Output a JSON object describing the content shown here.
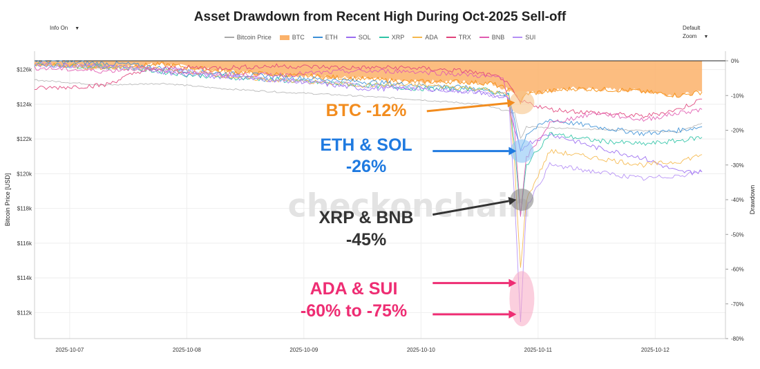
{
  "title": "Asset Drawdown from Recent High During Oct-2025 Sell-off",
  "controls": {
    "info_select": "Info On",
    "zoom_select": "Default Zoom",
    "caret": "▼"
  },
  "watermark": "checkonchain",
  "colors": {
    "bitcoin_price": "#a8a8a8",
    "btc": "#f7931a",
    "eth": "#3b8fd6",
    "sol": "#9a6cf0",
    "xrp": "#2ec4a6",
    "ada": "#f5b84c",
    "trx": "#e0427a",
    "bnb": "#e05ab0",
    "sui": "#b48ef5",
    "btc_fill": "#fbb26a",
    "grid": "#eeeeee",
    "axis_text": "#333333",
    "ann_orange": "#f28c1e",
    "ann_blue": "#1f7ae0",
    "ann_dark": "#333333",
    "ann_pink": "#ee2d73",
    "bubble_orange": "#f7c48a",
    "bubble_blue": "#8cc4f5",
    "bubble_dark": "#888888",
    "bubble_pink": "#f7a8c2"
  },
  "chart_data": {
    "type": "line",
    "title": "Asset Drawdown from Recent High During Oct-2025 Sell-off",
    "ylabel": "Bitcoin Price [USD]",
    "y2label": "Drawdown",
    "ylim": [
      110500,
      126500
    ],
    "y2lim": [
      -80,
      0
    ],
    "yticks": [
      126000,
      124000,
      122000,
      120000,
      118000,
      116000,
      114000,
      112000
    ],
    "ytick_labels": [
      "$126k",
      "$124k",
      "$122k",
      "$120k",
      "$118k",
      "$116k",
      "$114k",
      "$112k"
    ],
    "y2ticks": [
      0,
      -10,
      -20,
      -30,
      -40,
      -50,
      -60,
      -70,
      -80
    ],
    "y2tick_labels": [
      "0%",
      "-10%",
      "-20%",
      "-30%",
      "-40%",
      "-50%",
      "-60%",
      "-70%",
      "-80%"
    ],
    "xlim": [
      -0.3,
      5.6
    ],
    "xticks": [
      0,
      1,
      2,
      3,
      4,
      5
    ],
    "xtick_labels": [
      "2025-10-07",
      "2025-10-08",
      "2025-10-09",
      "2025-10-10",
      "2025-10-11",
      "2025-10-12"
    ],
    "legend": [
      "Bitcoin Price",
      "BTC",
      "ETH",
      "SOL",
      "XRP",
      "ADA",
      "TRX",
      "BNB",
      "SUI"
    ],
    "legend_position": "top-center",
    "crash_day": 3.85,
    "series": [
      {
        "name": "Bitcoin Price",
        "axis": "price",
        "color_key": "bitcoin_price",
        "x": [
          -0.3,
          0.3,
          0.8,
          1.3,
          1.8,
          2.4,
          2.9,
          3.5,
          3.8,
          3.85,
          3.9,
          4.3,
          4.8,
          5.2,
          5.4
        ],
        "y": [
          125400,
          125100,
          125200,
          124900,
          124700,
          124500,
          124300,
          124000,
          123500,
          122000,
          122700,
          122600,
          122500,
          122400,
          122900
        ]
      },
      {
        "name": "BTC",
        "axis": "drawdown",
        "color_key": "btc",
        "fill": true,
        "x": [
          -0.3,
          0.3,
          0.5,
          0.8,
          1.3,
          1.8,
          2.4,
          2.9,
          3.3,
          3.6,
          3.8,
          3.85,
          3.9,
          4.3,
          4.8,
          5.2,
          5.4
        ],
        "y": [
          -1,
          -2,
          -1.5,
          -1,
          -3,
          -4,
          -5,
          -6,
          -6,
          -6.5,
          -9,
          -12,
          -9.5,
          -8,
          -8.5,
          -10,
          -9
        ]
      },
      {
        "name": "ETH",
        "axis": "drawdown",
        "color_key": "eth",
        "x": [
          -0.3,
          0.5,
          1.0,
          1.5,
          2.0,
          2.5,
          3.0,
          3.5,
          3.75,
          3.8,
          3.85,
          3.9,
          4.1,
          4.5,
          4.9,
          5.2,
          5.4
        ],
        "y": [
          0,
          -1,
          -3,
          -4,
          -5,
          -6,
          -7,
          -8,
          -10,
          -17,
          -26,
          -21,
          -17,
          -19,
          -21,
          -20,
          -19
        ]
      },
      {
        "name": "SOL",
        "axis": "drawdown",
        "color_key": "sol",
        "x": [
          -0.3,
          0.5,
          1.0,
          1.5,
          2.0,
          2.5,
          3.0,
          3.5,
          3.75,
          3.8,
          3.85,
          3.9,
          4.1,
          4.5,
          4.9,
          5.2,
          5.4
        ],
        "y": [
          -1,
          -2,
          -4,
          -5,
          -6,
          -8,
          -8,
          -9,
          -11,
          -20,
          -26,
          -24,
          -21,
          -25,
          -28,
          -32,
          -32
        ]
      },
      {
        "name": "XRP",
        "axis": "drawdown",
        "color_key": "xrp",
        "x": [
          -0.3,
          0.5,
          1.0,
          1.5,
          2.0,
          2.5,
          3.0,
          3.5,
          3.75,
          3.8,
          3.85,
          3.9,
          4.1,
          4.5,
          4.9,
          5.2,
          5.4
        ],
        "y": [
          -1,
          -2,
          -4,
          -5,
          -6,
          -7,
          -8,
          -8,
          -10,
          -25,
          -45,
          -30,
          -21,
          -23,
          -24,
          -23,
          -22
        ]
      },
      {
        "name": "ADA",
        "axis": "drawdown",
        "color_key": "ada",
        "x": [
          -0.3,
          0.5,
          1.0,
          1.5,
          2.0,
          2.5,
          3.0,
          3.5,
          3.75,
          3.8,
          3.85,
          3.9,
          4.1,
          4.5,
          4.9,
          5.2,
          5.4
        ],
        "y": [
          -1,
          -2,
          -3,
          -5,
          -6,
          -7,
          -7,
          -8,
          -10,
          -30,
          -60,
          -40,
          -26,
          -28,
          -30,
          -29,
          -27
        ]
      },
      {
        "name": "TRX",
        "axis": "drawdown",
        "color_key": "trx",
        "x": [
          -0.3,
          0.3,
          0.6,
          0.9,
          1.3,
          1.8,
          2.4,
          2.9,
          3.4,
          3.7,
          3.85,
          3.9,
          4.1,
          4.5,
          4.9,
          5.2,
          5.4
        ],
        "y": [
          -8,
          -7,
          -3,
          -2,
          -2,
          -1.5,
          -2,
          -2,
          -3,
          -5,
          -12,
          -12,
          -14,
          -15,
          -16,
          -14,
          -11
        ]
      },
      {
        "name": "BNB",
        "axis": "drawdown",
        "color_key": "bnb",
        "x": [
          -0.3,
          0.3,
          0.6,
          0.9,
          1.3,
          1.8,
          2.4,
          2.9,
          3.4,
          3.7,
          3.8,
          3.85,
          3.9,
          4.1,
          4.5,
          4.9,
          5.2,
          5.4
        ],
        "y": [
          -2,
          -3,
          -2,
          -3,
          -4,
          -4,
          -3,
          -3,
          -4,
          -5,
          -20,
          -45,
          -28,
          -18,
          -15,
          -17,
          -15,
          -14
        ]
      },
      {
        "name": "SUI",
        "axis": "drawdown",
        "color_key": "sui",
        "x": [
          -0.3,
          0.5,
          1.0,
          1.5,
          2.0,
          2.5,
          3.0,
          3.5,
          3.75,
          3.8,
          3.85,
          3.9,
          4.1,
          4.5,
          4.9,
          5.2,
          5.4
        ],
        "y": [
          -1,
          -2,
          -3,
          -5,
          -6,
          -7,
          -8,
          -9,
          -11,
          -40,
          -75,
          -42,
          -30,
          -32,
          -34,
          -33,
          -32
        ]
      }
    ],
    "annotations": [
      {
        "label": "BTC -12%",
        "color_key": "ann_orange",
        "bubble_key": "bubble_orange",
        "target_day": 3.85,
        "target_dd": -12
      },
      {
        "label_line1": "ETH & SOL",
        "label_line2": "-26%",
        "color_key": "ann_blue",
        "bubble_key": "bubble_blue",
        "target_day": 3.85,
        "target_dd": -26
      },
      {
        "label_line1": "XRP & BNB",
        "label_line2": "-45%",
        "color_key": "ann_dark",
        "bubble_key": "bubble_dark",
        "target_day": 3.85,
        "target_dd": -40
      },
      {
        "label_line1": "ADA & SUI",
        "label_line2": "-60% to -75%",
        "color_key": "ann_pink",
        "bubble_key": "bubble_pink",
        "target_day": 3.85,
        "target_dd": -64,
        "target2_dd": -73
      }
    ]
  }
}
